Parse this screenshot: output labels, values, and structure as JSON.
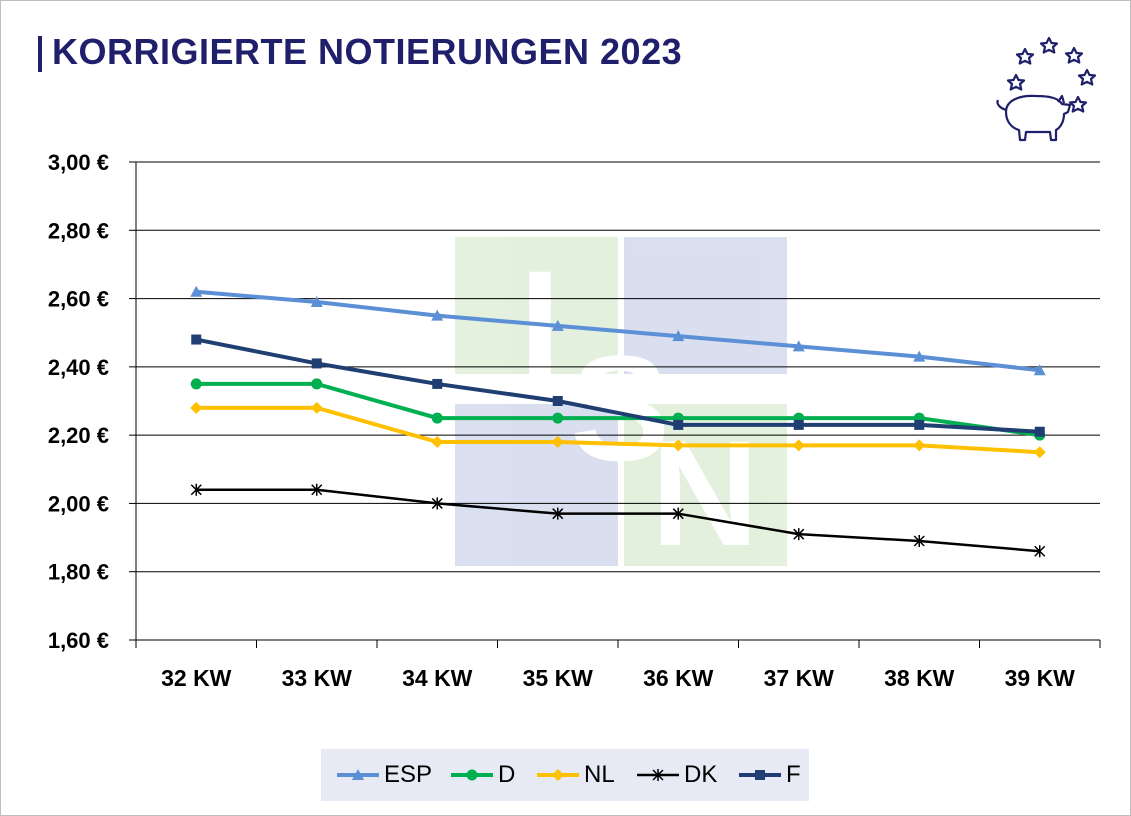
{
  "title": "KORRIGIERTE NOTIERUNGEN 2023",
  "watermark": {
    "letters": [
      "I",
      "S",
      "N"
    ]
  },
  "logo": {
    "icon": "pig-with-stars-icon"
  },
  "colors": {
    "title": "#1f1f6b",
    "ESP": "#5b8fd6",
    "D": "#00b050",
    "NL": "#ffc000",
    "DK": "#000000",
    "F": "#1f3f73"
  },
  "chart_data": {
    "type": "line",
    "categories": [
      "32 KW",
      "33 KW",
      "34 KW",
      "35 KW",
      "36 KW",
      "37 KW",
      "38 KW",
      "39 KW"
    ],
    "y_tick_labels": [
      "1,60 €",
      "1,80 €",
      "2,00 €",
      "2,20 €",
      "2,40 €",
      "2,60 €",
      "2,80 €",
      "3,00 €"
    ],
    "ylim": [
      1.6,
      3.0
    ],
    "ytick_step": 0.2,
    "grid": true,
    "legend_position": "bottom",
    "series": [
      {
        "name": "ESP",
        "marker": "triangle",
        "values": [
          2.62,
          2.59,
          2.55,
          2.52,
          2.49,
          2.46,
          2.43,
          2.39
        ]
      },
      {
        "name": "D",
        "marker": "circle",
        "values": [
          2.35,
          2.35,
          2.25,
          2.25,
          2.25,
          2.25,
          2.25,
          2.2
        ]
      },
      {
        "name": "NL",
        "marker": "diamond",
        "values": [
          2.28,
          2.28,
          2.18,
          2.18,
          2.17,
          2.17,
          2.17,
          2.15
        ]
      },
      {
        "name": "DK",
        "marker": "star",
        "values": [
          2.04,
          2.04,
          2.0,
          1.97,
          1.97,
          1.91,
          1.89,
          1.86
        ]
      },
      {
        "name": "F",
        "marker": "square",
        "values": [
          2.48,
          2.41,
          2.35,
          2.3,
          2.23,
          2.23,
          2.23,
          2.21
        ]
      }
    ]
  }
}
